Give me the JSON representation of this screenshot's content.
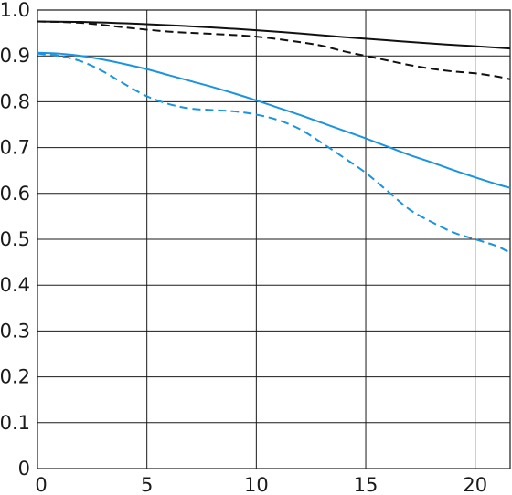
{
  "chart_data": {
    "type": "line",
    "title": "",
    "xlabel": "",
    "ylabel": "",
    "xlim": [
      0,
      21.6
    ],
    "ylim": [
      0,
      1.0
    ],
    "grid": true,
    "legend": "none",
    "x_ticks": [
      0,
      5,
      10,
      15,
      20
    ],
    "x_tick_labels": [
      "0",
      "5",
      "10",
      "15",
      "20"
    ],
    "y_ticks": [
      0,
      0.1,
      0.2,
      0.3,
      0.4,
      0.5,
      0.6,
      0.7,
      0.8,
      0.9,
      1.0
    ],
    "y_tick_labels": [
      "0",
      "0.1",
      "0.2",
      "0.3",
      "0.4",
      "0.5",
      "0.6",
      "0.7",
      "0.8",
      "0.9",
      "1.0"
    ],
    "colors": {
      "black": "#111111",
      "blue": "#1a94e0"
    },
    "series": [
      {
        "color": "#111111",
        "dash": "solid",
        "x": [
          0,
          2,
          4,
          6,
          8,
          10,
          12,
          14,
          16,
          18,
          20,
          21.6
        ],
        "y": [
          0.975,
          0.974,
          0.971,
          0.967,
          0.962,
          0.956,
          0.949,
          0.941,
          0.934,
          0.927,
          0.921,
          0.916
        ]
      },
      {
        "color": "#111111",
        "dash": "dashed",
        "x": [
          0,
          2,
          4,
          6,
          8,
          10,
          12,
          13,
          14,
          15,
          16,
          17,
          18,
          19,
          20,
          21,
          21.6
        ],
        "y": [
          0.975,
          0.972,
          0.962,
          0.953,
          0.948,
          0.942,
          0.93,
          0.922,
          0.91,
          0.9,
          0.89,
          0.88,
          0.872,
          0.866,
          0.862,
          0.855,
          0.849
        ]
      },
      {
        "color": "#1a94e0",
        "dash": "solid",
        "x": [
          0,
          1,
          2,
          3,
          4,
          5,
          6,
          7,
          8,
          9,
          10,
          11,
          12,
          13,
          14,
          15,
          16,
          17,
          18,
          19,
          20,
          21,
          21.6
        ],
        "y": [
          0.907,
          0.905,
          0.9,
          0.892,
          0.882,
          0.871,
          0.858,
          0.845,
          0.832,
          0.818,
          0.803,
          0.787,
          0.771,
          0.754,
          0.737,
          0.72,
          0.702,
          0.684,
          0.668,
          0.651,
          0.635,
          0.62,
          0.612
        ]
      },
      {
        "color": "#1a94e0",
        "dash": "dashed",
        "x": [
          0,
          1,
          2,
          3,
          4,
          5,
          6,
          7,
          8,
          9,
          10,
          11,
          12,
          13,
          14,
          15,
          16,
          17,
          18,
          19,
          20,
          21,
          21.6
        ],
        "y": [
          0.905,
          0.9,
          0.888,
          0.866,
          0.838,
          0.812,
          0.795,
          0.785,
          0.782,
          0.779,
          0.772,
          0.76,
          0.74,
          0.71,
          0.678,
          0.645,
          0.605,
          0.565,
          0.538,
          0.515,
          0.5,
          0.485,
          0.47
        ]
      }
    ]
  }
}
